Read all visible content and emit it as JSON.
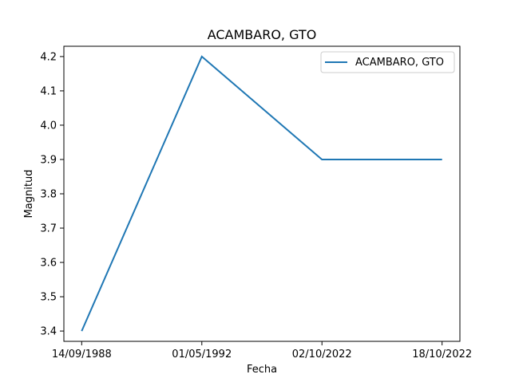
{
  "chart_data": {
    "type": "line",
    "title": "ACAMBARO, GTO",
    "xlabel": "Fecha",
    "ylabel": "Magnitud",
    "categories": [
      "14/09/1988",
      "01/05/1992",
      "02/10/2022",
      "18/10/2022"
    ],
    "series": [
      {
        "name": "ACAMBARO, GTO",
        "values": [
          3.4,
          4.2,
          3.9,
          3.9
        ],
        "color": "#1f77b4"
      }
    ],
    "ylim": [
      3.37,
      4.23
    ],
    "yticks": [
      3.4,
      3.5,
      3.6,
      3.7,
      3.8,
      3.9,
      4.0,
      4.1,
      4.2
    ],
    "ytick_labels": [
      "3.4",
      "3.5",
      "3.6",
      "3.7",
      "3.8",
      "3.9",
      "4.0",
      "4.1",
      "4.2"
    ],
    "grid": false,
    "legend_position": "top-right"
  }
}
